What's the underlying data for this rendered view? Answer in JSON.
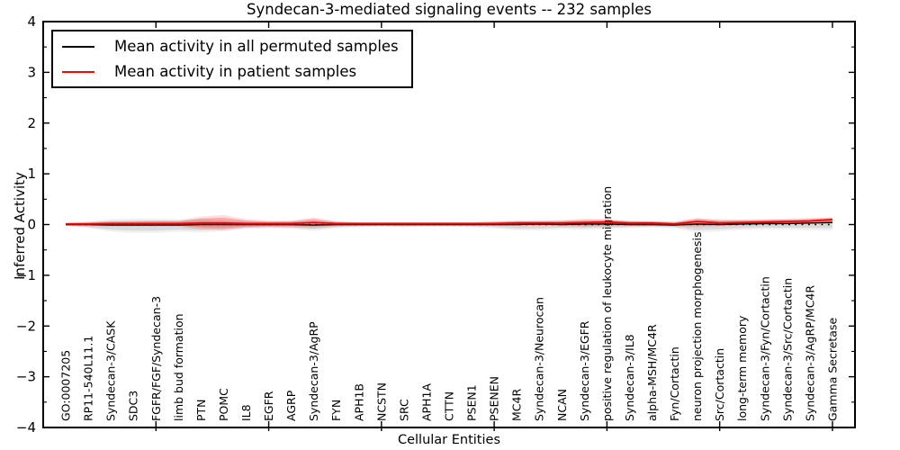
{
  "chart_data": {
    "type": "line",
    "title": "Syndecan-3-mediated signaling events -- 232 samples",
    "xlabel": "Cellular Entities",
    "ylabel": "Inferred Activity",
    "ylim": [
      -4,
      4
    ],
    "xlim": [
      0,
      36
    ],
    "yticks_major": [
      -4,
      -3,
      -2,
      -1,
      0,
      1,
      2,
      3,
      4
    ],
    "ytick_minor_step": 0.5,
    "xticks_major_units": [
      5,
      10,
      15,
      20,
      25,
      30,
      35
    ],
    "grid": false,
    "legend_position": "upper-left",
    "zero_line_style": "dotted",
    "categories": [
      "GO:0007205",
      "RP11-540L11.1",
      "Syndecan-3/CASK",
      "SDC3",
      "FGFR/FGF/Syndecan-3",
      "limb bud formation",
      "PTN",
      "POMC",
      "IL8",
      "EGFR",
      "AGRP",
      "Syndecan-3/AgRP",
      "FYN",
      "APH1B",
      "NCSTN",
      "SRC",
      "APH1A",
      "CTTN",
      "PSEN1",
      "PSENEN",
      "MC4R",
      "Syndecan-3/Neurocan",
      "NCAN",
      "Syndecan-3/EGFR",
      "positive regulation of leukocyte migration",
      "Syndecan-3/IL8",
      "alpha-MSH/MC4R",
      "Fyn/Cortactin",
      "neuron projection morphogenesis",
      "Src/Cortactin",
      "long-term memory",
      "Syndecan-3/Fyn/Cortactin",
      "Syndecan-3/Src/Cortactin",
      "Syndecan-3/AgRP/MC4R",
      "Gamma Secretase"
    ],
    "series": [
      {
        "name": "Mean activity in all permuted samples",
        "color": "#000000",
        "band_color": "#888888",
        "values": [
          0.0,
          0.0,
          -0.01,
          -0.01,
          -0.01,
          -0.01,
          0.0,
          0.0,
          0.0,
          0.0,
          0.0,
          -0.01,
          0.0,
          0.0,
          0.0,
          0.0,
          0.0,
          0.0,
          0.0,
          0.0,
          0.0,
          0.01,
          0.0,
          0.01,
          0.01,
          0.0,
          0.0,
          -0.01,
          0.01,
          0.0,
          0.01,
          0.02,
          0.02,
          0.03,
          0.04
        ],
        "band_upper": [
          0.02,
          0.04,
          0.07,
          0.08,
          0.08,
          0.07,
          0.08,
          0.07,
          0.05,
          0.04,
          0.05,
          0.06,
          0.04,
          0.03,
          0.03,
          0.03,
          0.03,
          0.03,
          0.03,
          0.04,
          0.06,
          0.06,
          0.05,
          0.06,
          0.06,
          0.05,
          0.04,
          0.04,
          0.08,
          0.08,
          0.07,
          0.07,
          0.07,
          0.08,
          0.09
        ],
        "band_lower": [
          -0.02,
          -0.05,
          -0.1,
          -0.12,
          -0.12,
          -0.1,
          -0.11,
          -0.09,
          -0.06,
          -0.05,
          -0.06,
          -0.09,
          -0.05,
          -0.04,
          -0.03,
          -0.04,
          -0.03,
          -0.03,
          -0.04,
          -0.05,
          -0.08,
          -0.08,
          -0.06,
          -0.07,
          -0.06,
          -0.05,
          -0.04,
          -0.05,
          -0.11,
          -0.09,
          -0.07,
          -0.06,
          -0.06,
          -0.07,
          -0.07
        ]
      },
      {
        "name": "Mean activity in patient samples",
        "color": "#ff0000",
        "band_color": "#ff0000",
        "values": [
          0.01,
          0.01,
          0.02,
          0.02,
          0.02,
          0.02,
          0.03,
          0.03,
          0.02,
          0.02,
          0.02,
          0.04,
          0.02,
          0.02,
          0.02,
          0.02,
          0.02,
          0.02,
          0.02,
          0.02,
          0.03,
          0.03,
          0.03,
          0.04,
          0.05,
          0.03,
          0.03,
          0.01,
          0.06,
          0.03,
          0.04,
          0.05,
          0.06,
          0.07,
          0.1
        ],
        "band_upper": [
          0.03,
          0.04,
          0.05,
          0.05,
          0.06,
          0.06,
          0.12,
          0.14,
          0.08,
          0.06,
          0.06,
          0.11,
          0.05,
          0.04,
          0.04,
          0.04,
          0.04,
          0.04,
          0.04,
          0.05,
          0.06,
          0.06,
          0.07,
          0.09,
          0.09,
          0.06,
          0.06,
          0.04,
          0.11,
          0.07,
          0.08,
          0.09,
          0.1,
          0.11,
          0.13
        ],
        "band_lower": [
          -0.01,
          -0.02,
          -0.02,
          -0.02,
          -0.02,
          -0.02,
          -0.06,
          -0.07,
          -0.04,
          -0.03,
          -0.03,
          -0.04,
          -0.02,
          -0.01,
          -0.01,
          -0.01,
          -0.01,
          -0.01,
          -0.01,
          -0.01,
          -0.01,
          -0.01,
          -0.01,
          -0.02,
          -0.01,
          -0.01,
          -0.01,
          -0.02,
          -0.02,
          -0.01,
          0.0,
          0.01,
          0.02,
          0.03,
          0.06
        ]
      }
    ]
  }
}
